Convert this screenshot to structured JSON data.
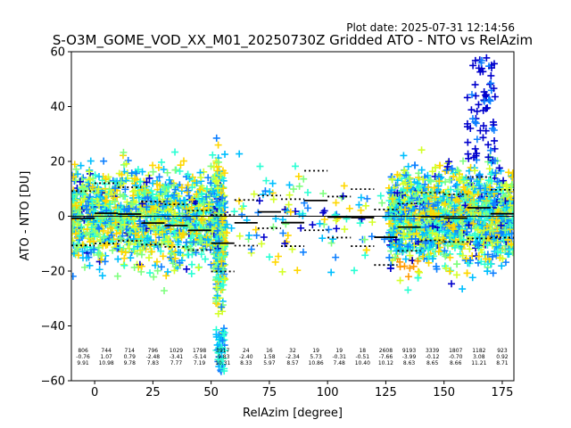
{
  "plot_date": "Plot date: 2025-07-31 12:14:56",
  "chart_data": {
    "type": "scatter",
    "title": "S-O3M_GOME_VOD_XX_M01_20250730Z Gridded ATO - NTO vs RelAzim",
    "xlabel": "RelAzim [degree]",
    "ylabel": "ATO - NTO [DU]",
    "xlim": [
      -10,
      180
    ],
    "ylim": [
      -60,
      60
    ],
    "xticks": [
      0,
      25,
      50,
      75,
      100,
      125,
      150,
      175
    ],
    "yticks": [
      -60,
      -40,
      -20,
      0,
      20,
      40,
      60
    ],
    "grid": false,
    "colors": [
      "#0000cc",
      "#0f80ff",
      "#00bfff",
      "#2affd4",
      "#7fff7f",
      "#d4ff2a",
      "#ffd700",
      "#ff9a00"
    ],
    "bins": [
      {
        "x": -5,
        "count": "806",
        "mean": "-0.76",
        "std": "9.91"
      },
      {
        "x": 5,
        "count": "744",
        "mean": "1.07",
        "std": "10.98"
      },
      {
        "x": 15,
        "count": "714",
        "mean": "0.79",
        "std": "9.78"
      },
      {
        "x": 25,
        "count": "796",
        "mean": "-2.48",
        "std": "7.83"
      },
      {
        "x": 35,
        "count": "1029",
        "mean": "-3.41",
        "std": "7.77"
      },
      {
        "x": 45,
        "count": "1798",
        "mean": "-5.14",
        "std": "7.19"
      },
      {
        "x": 55,
        "count": "3917",
        "mean": "-9.83",
        "std": "10.31"
      },
      {
        "x": 65,
        "count": "24",
        "mean": "-2.40",
        "std": "8.33"
      },
      {
        "x": 75,
        "count": "16",
        "mean": "1.58",
        "std": "5.97"
      },
      {
        "x": 85,
        "count": "32",
        "mean": "-2.34",
        "std": "8.57"
      },
      {
        "x": 95,
        "count": "19",
        "mean": "5.73",
        "std": "10.86"
      },
      {
        "x": 105,
        "count": "19",
        "mean": "-0.31",
        "std": "7.48"
      },
      {
        "x": 115,
        "count": "18",
        "mean": "-0.51",
        "std": "10.40"
      },
      {
        "x": 125,
        "count": "2608",
        "mean": "-7.66",
        "std": "10.12"
      },
      {
        "x": 135,
        "count": "9193",
        "mean": "-3.99",
        "std": "8.63"
      },
      {
        "x": 145,
        "count": "3339",
        "mean": "-0.12",
        "std": "8.65"
      },
      {
        "x": 155,
        "count": "1807",
        "mean": "-0.70",
        "std": "8.66"
      },
      {
        "x": 165,
        "count": "1182",
        "mean": "3.08",
        "std": "11.21"
      },
      {
        "x": 175,
        "count": "923",
        "mean": "0.92",
        "std": "8.71"
      }
    ]
  }
}
